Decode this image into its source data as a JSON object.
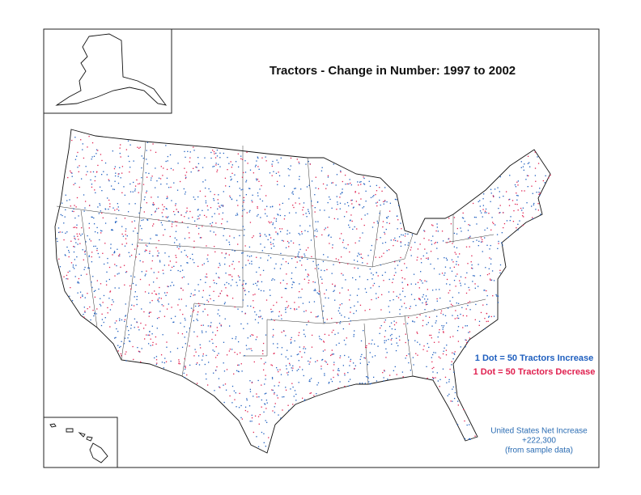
{
  "title": "Tractors - Change in Number:  1997 to 2002",
  "legend": [
    {
      "label": "1 Dot = 50 Tractors Increase",
      "color": "#1f5fbf"
    },
    {
      "label": "1 Dot = 50 Tractors Decrease",
      "color": "#e0204f"
    }
  ],
  "note": {
    "lines": [
      "United States Net Increase",
      "+222,300",
      "(from sample data)"
    ]
  }
}
